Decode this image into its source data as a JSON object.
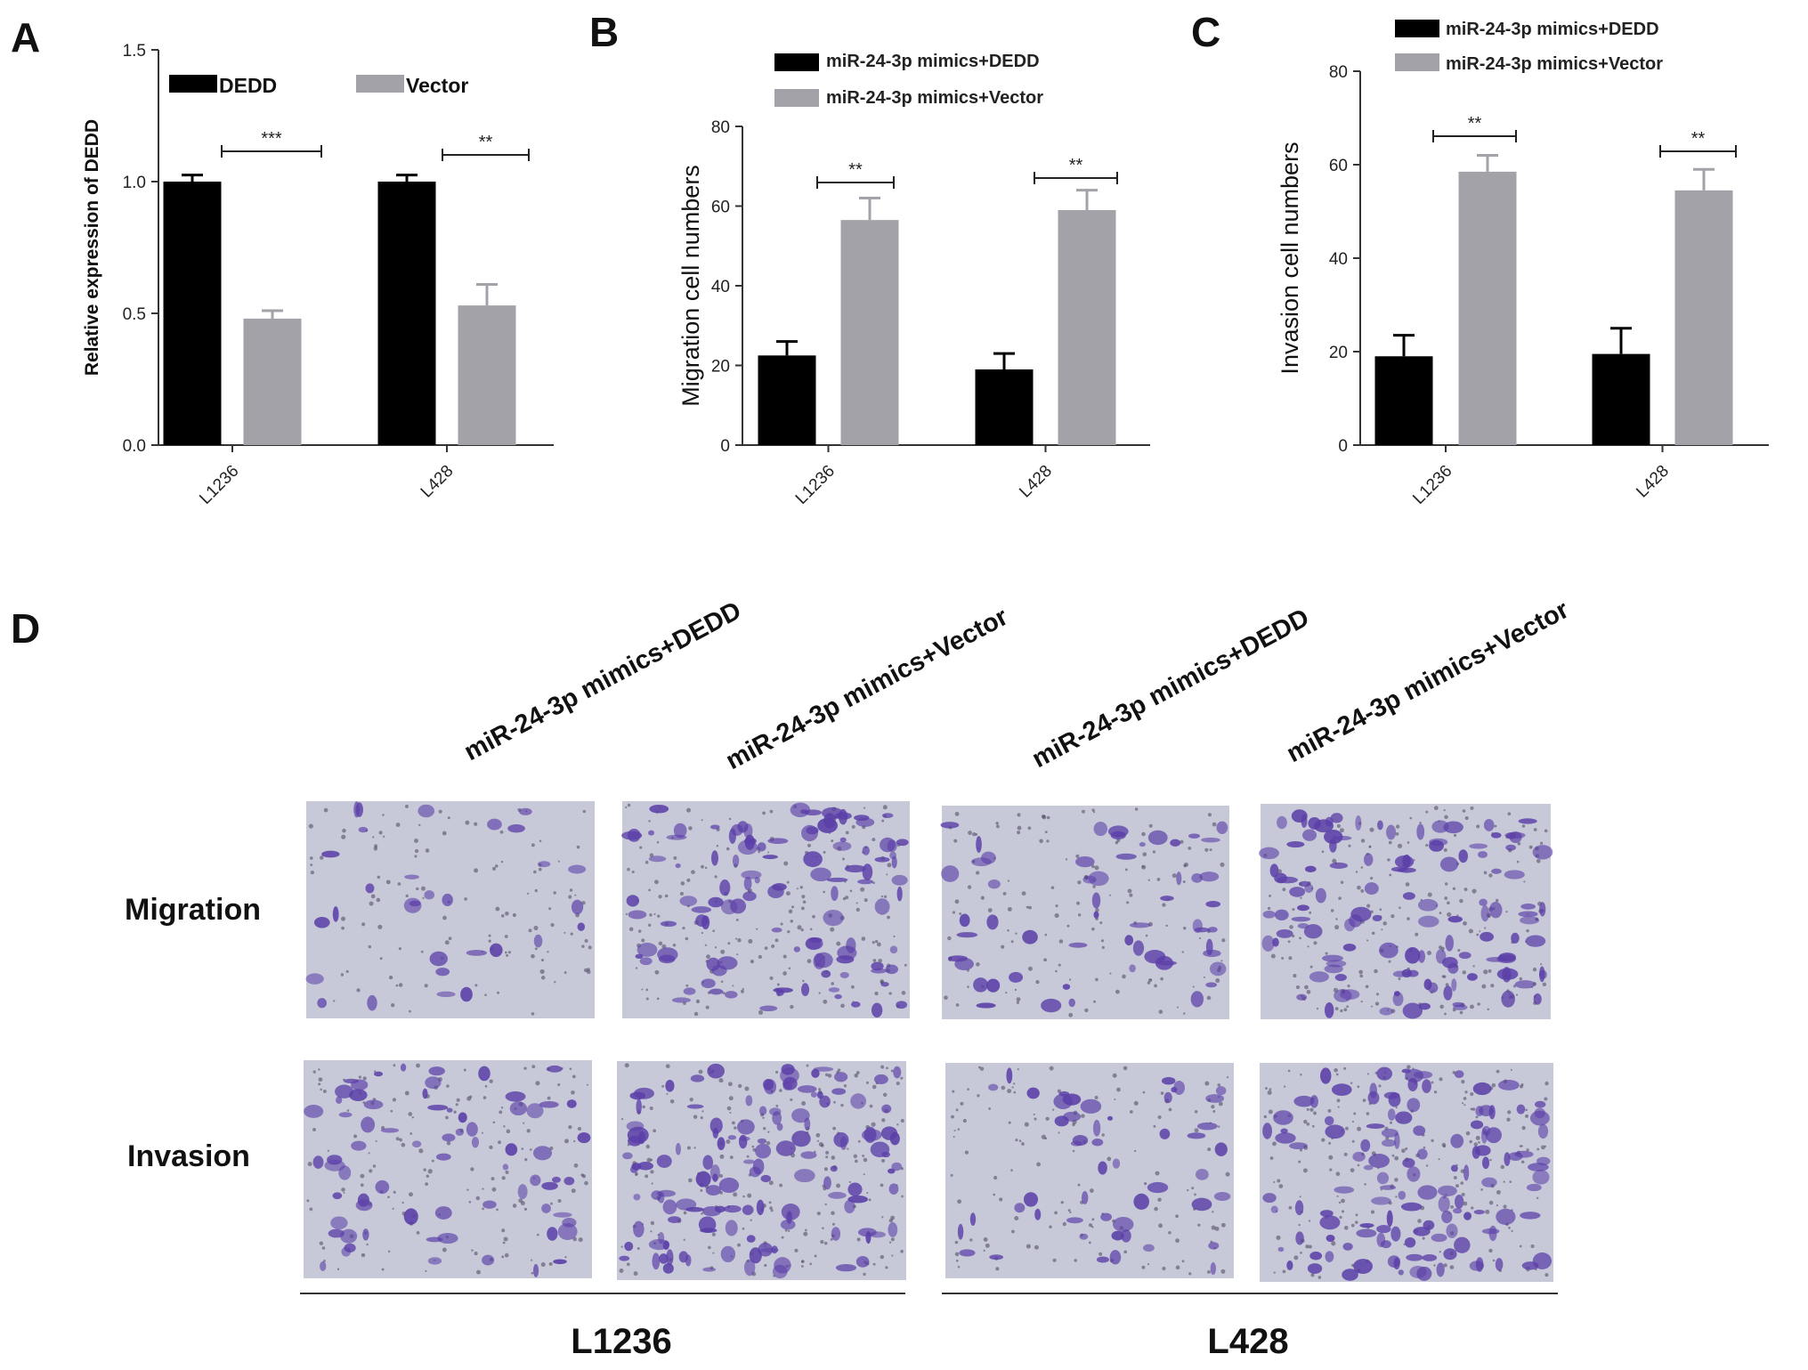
{
  "panels": {
    "A": "A",
    "B": "B",
    "C": "C",
    "D": "D"
  },
  "colors": {
    "dedd": "#000000",
    "vector": "#a3a2a8",
    "stain": "#5b3fa8",
    "field_background": "#c7c9d8"
  },
  "chart_data": [
    {
      "id": "A",
      "type": "bar",
      "xlabel": "",
      "ylabel": "Relative expression of DEDD",
      "categories": [
        "L1236",
        "L428"
      ],
      "ylim": [
        0,
        1.5
      ],
      "yticks": [
        "0.0",
        "0.5",
        "1.0",
        "1.5"
      ],
      "legend_placement": "top",
      "series": [
        {
          "name": "DEDD",
          "values": [
            1.0,
            1.0
          ],
          "errors": [
            0.025,
            0.025
          ]
        },
        {
          "name": "Vector",
          "values": [
            0.48,
            0.53
          ],
          "errors": [
            0.03,
            0.08
          ]
        }
      ],
      "significance": [
        "***",
        "**"
      ],
      "grid": false
    },
    {
      "id": "B",
      "type": "bar",
      "xlabel": "",
      "ylabel": "Migration cell numbers",
      "categories": [
        "L1236",
        "L428"
      ],
      "ylim": [
        0,
        80
      ],
      "yticks": [
        "0",
        "20",
        "40",
        "60",
        "80"
      ],
      "legend_placement": "top",
      "series": [
        {
          "name": "miR-24-3p mimics+DEDD",
          "values": [
            22.5,
            19
          ],
          "errors": [
            3.5,
            4
          ]
        },
        {
          "name": "miR-24-3p mimics+Vector",
          "values": [
            56.5,
            59
          ],
          "errors": [
            5.5,
            5
          ]
        }
      ],
      "significance": [
        "**",
        "**"
      ],
      "grid": false
    },
    {
      "id": "C",
      "type": "bar",
      "xlabel": "",
      "ylabel": "Invasion cell numbers",
      "categories": [
        "L1236",
        "L428"
      ],
      "ylim": [
        0,
        80
      ],
      "yticks": [
        "0",
        "20",
        "40",
        "60",
        "80"
      ],
      "legend_placement": "top",
      "series": [
        {
          "name": "miR-24-3p mimics+DEDD",
          "values": [
            19,
            19.5
          ],
          "errors": [
            4.5,
            5.5
          ]
        },
        {
          "name": "miR-24-3p mimics+Vector",
          "values": [
            58.5,
            54.5
          ],
          "errors": [
            3.5,
            4.5
          ]
        }
      ],
      "significance": [
        "**",
        "**"
      ],
      "grid": false
    }
  ],
  "micrographs": {
    "columns": [
      "miR-24-3p mimics+DEDD",
      "miR-24-3p mimics+Vector",
      "miR-24-3p mimics+DEDD",
      "miR-24-3p mimics+Vector"
    ],
    "rows": [
      "Migration",
      "Invasion"
    ],
    "groups": [
      "L1236",
      "L428"
    ]
  }
}
